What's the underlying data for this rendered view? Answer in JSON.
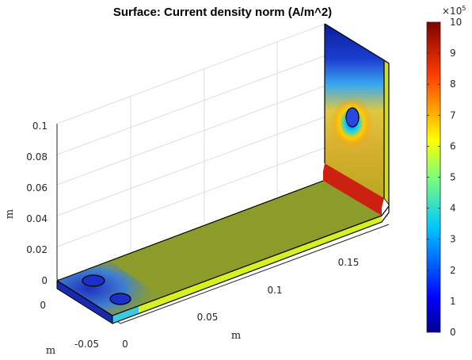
{
  "chart_data": {
    "type": "surface",
    "title": "Surface: Current density norm (A/m^2)",
    "x_axis": {
      "label": "m",
      "ticks": [
        "0",
        "0.05",
        "0.1",
        "0.15"
      ]
    },
    "y_axis": {
      "label": "m",
      "ticks": [
        "-0.05",
        "0"
      ]
    },
    "z_axis": {
      "label": "m",
      "ticks": [
        "0",
        "0.02",
        "0.04",
        "0.06",
        "0.08",
        "0.1"
      ]
    },
    "colorbar": {
      "multiplier": "×10",
      "exponent": "5",
      "ticks": [
        "0",
        "1",
        "2",
        "3",
        "4",
        "5",
        "6",
        "7",
        "8",
        "9",
        "10"
      ],
      "range": [
        0,
        1000000
      ],
      "colormap": "jet"
    },
    "grid": true,
    "regions": [
      {
        "part": "horizontal plate top",
        "value": 550000
      },
      {
        "part": "plate front edge",
        "value": 650000
      },
      {
        "part": "bend inner face",
        "value": 850000
      },
      {
        "part": "vertical plate upper area",
        "value": 80000
      },
      {
        "part": "vertical plate around hole",
        "value": 750000
      },
      {
        "part": "holes near left end",
        "value": 150000
      }
    ]
  }
}
